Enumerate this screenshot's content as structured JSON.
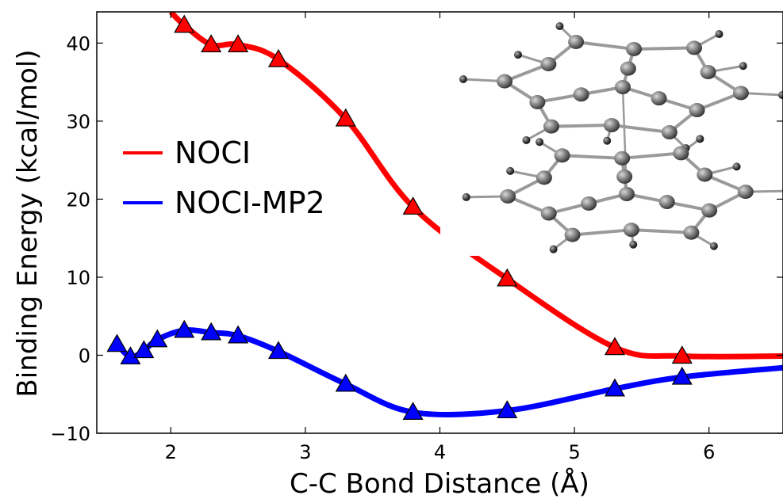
{
  "chart_data": {
    "type": "line",
    "xlabel": "C-C Bond Distance (Å)",
    "ylabel": "Binding Energy (kcal/mol)",
    "xlim": [
      1.45,
      6.55
    ],
    "ylim": [
      -10,
      44
    ],
    "xticks": [
      {
        "value": 2,
        "label": "2"
      },
      {
        "value": 3,
        "label": "3"
      },
      {
        "value": 4,
        "label": "4"
      },
      {
        "value": 5,
        "label": "5"
      },
      {
        "value": 6,
        "label": "6"
      }
    ],
    "yticks": [
      {
        "value": -10,
        "label": "−10"
      },
      {
        "value": 0,
        "label": "0"
      },
      {
        "value": 10,
        "label": "10"
      },
      {
        "value": 20,
        "label": "20"
      },
      {
        "value": 30,
        "label": "30"
      },
      {
        "value": 40,
        "label": "40"
      }
    ],
    "legend_position": "middle-left",
    "grid": false,
    "series": [
      {
        "name": "NOCI",
        "color": "#ff0000",
        "marker": "triangle",
        "curve_x": [
          2.0,
          2.1,
          2.3,
          2.5,
          2.8,
          3.3,
          3.8,
          4.5,
          5.3,
          5.8,
          6.55
        ],
        "curve_y": [
          44.0,
          42.3,
          39.8,
          39.8,
          37.9,
          30.3,
          19.0,
          9.8,
          1.0,
          -0.1,
          -0.1
        ],
        "marker_x": [
          2.1,
          2.3,
          2.5,
          2.8,
          3.3,
          3.8,
          4.5,
          5.3,
          5.8
        ],
        "marker_y": [
          42.3,
          39.8,
          39.8,
          37.9,
          30.3,
          19.0,
          9.8,
          1.0,
          -0.1
        ]
      },
      {
        "name": "NOCI-MP2",
        "color": "#0000ff",
        "marker": "triangle",
        "curve_x": [
          1.6,
          1.7,
          1.8,
          1.9,
          2.1,
          2.3,
          2.5,
          2.8,
          3.3,
          3.8,
          4.5,
          5.3,
          5.8,
          6.55
        ],
        "curve_y": [
          1.4,
          -0.2,
          0.6,
          2.0,
          3.2,
          2.9,
          2.5,
          0.5,
          -3.7,
          -7.3,
          -7.1,
          -4.3,
          -2.8,
          -1.6
        ],
        "marker_x": [
          1.6,
          1.7,
          1.8,
          1.9,
          2.1,
          2.3,
          2.5,
          2.8,
          3.3,
          3.8,
          4.5,
          5.3,
          5.8
        ],
        "marker_y": [
          1.4,
          -0.2,
          0.6,
          2.0,
          3.2,
          2.9,
          2.5,
          0.5,
          -3.7,
          -7.3,
          -7.1,
          -4.3,
          -2.8
        ]
      }
    ],
    "inset": {
      "icon": "molecule-dimer-icon",
      "atom_color": "#7a7a7a",
      "bond_color": "#9a9a9a"
    }
  }
}
